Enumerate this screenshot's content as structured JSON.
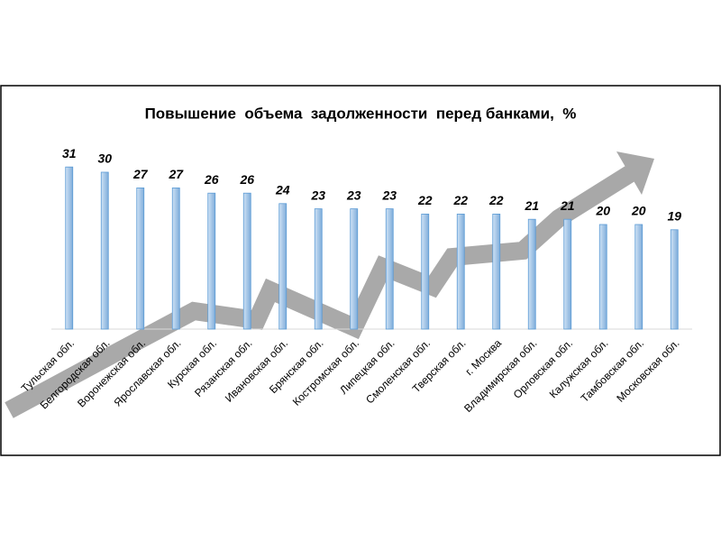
{
  "chart_data": {
    "type": "bar",
    "title": "Повышение  объема  задолженности  перед банками,  %",
    "categories": [
      "Тульская обл.",
      "Белгородская обл.",
      "Воронежская обл.",
      "Ярославская обл.",
      "Курская обл.",
      "Рязанская обл.",
      "Ивановская обл.",
      "Брянская обл.",
      "Костромская обл.",
      "Липецкая обл.",
      "Смоленская обл.",
      "Тверская обл.",
      "г. Москва",
      "Владимирская обл.",
      "Орловская  обл.",
      "Калужская обл.",
      "Тамбовская обл.",
      "Московская обл."
    ],
    "values": [
      31,
      30,
      27,
      27,
      26,
      26,
      24,
      23,
      23,
      23,
      22,
      22,
      22,
      21,
      21,
      20,
      20,
      19
    ],
    "color": "#9dc3e6",
    "ylim": [
      0,
      35
    ]
  }
}
